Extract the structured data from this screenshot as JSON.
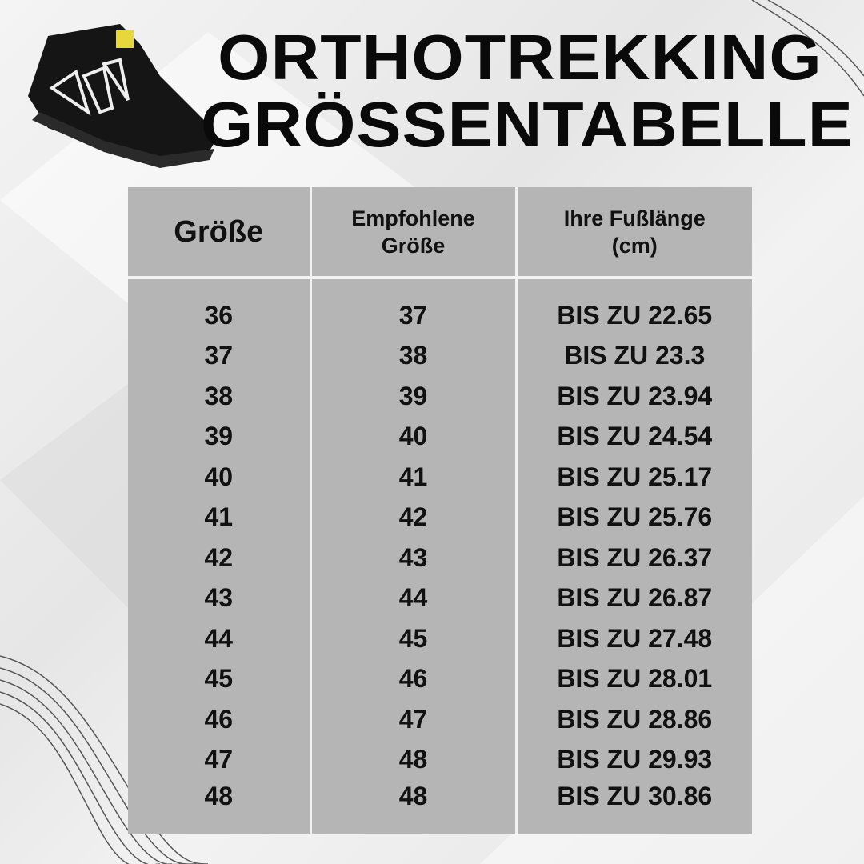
{
  "header": {
    "title_lines": [
      "ORTHOTREKKING",
      "GRÖSSENTABELLE"
    ]
  },
  "table": {
    "headers": [
      [
        "Größe"
      ],
      [
        "Empfohlene",
        "Größe"
      ],
      [
        "Ihre Fußlänge",
        "(cm)"
      ]
    ],
    "rows": [
      [
        "36",
        "37",
        "BIS ZU 22.65"
      ],
      [
        "37",
        "38",
        "BIS ZU 23.3"
      ],
      [
        "38",
        "39",
        "BIS ZU 23.94"
      ],
      [
        "39",
        "40",
        "BIS ZU 24.54"
      ],
      [
        "40",
        "41",
        "BIS ZU 25.17"
      ],
      [
        "41",
        "42",
        "BIS ZU 25.76"
      ],
      [
        "42",
        "43",
        "BIS ZU 26.37"
      ],
      [
        "43",
        "44",
        "BIS ZU 26.87"
      ],
      [
        "44",
        "45",
        "BIS ZU 27.48"
      ],
      [
        "45",
        "46",
        "BIS ZU 28.01"
      ],
      [
        "46",
        "47",
        "BIS ZU 28.86"
      ],
      [
        "47",
        "48",
        "BIS ZU 29.93"
      ],
      [
        "48",
        "48",
        "BIS ZU 30.86"
      ]
    ]
  }
}
